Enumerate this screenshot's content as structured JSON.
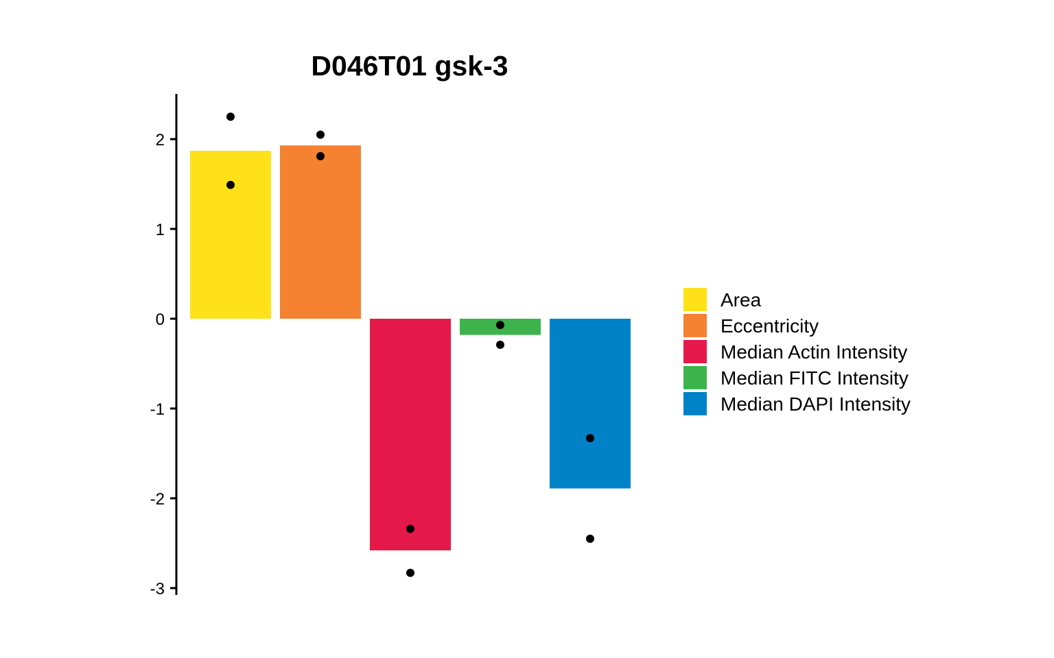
{
  "chart_data": {
    "type": "bar",
    "title": "D046T01 gsk-3",
    "xlabel": "",
    "ylabel": "",
    "ylim": [
      -3.08,
      2.5
    ],
    "yticks": [
      2,
      1,
      0,
      -1,
      -2,
      -3
    ],
    "ytick_labels": [
      "2",
      "1",
      "0",
      "-1",
      "-2",
      "-3"
    ],
    "categories": [
      "Area",
      "Eccentricity",
      "Median Actin Intensity",
      "Median FITC Intensity",
      "Median DAPI Intensity"
    ],
    "values": [
      1.87,
      1.93,
      -2.58,
      -0.18,
      -1.89
    ],
    "colors": [
      "#FFE119",
      "#F58231",
      "#E6194B",
      "#3CB44B",
      "#0082C8"
    ],
    "points": [
      [
        2.25,
        1.49
      ],
      [
        2.05,
        1.81
      ],
      [
        -2.34,
        -2.83
      ],
      [
        -0.07,
        -0.29
      ],
      [
        -1.33,
        -2.45
      ]
    ],
    "legend_position": "right",
    "grid": false
  }
}
